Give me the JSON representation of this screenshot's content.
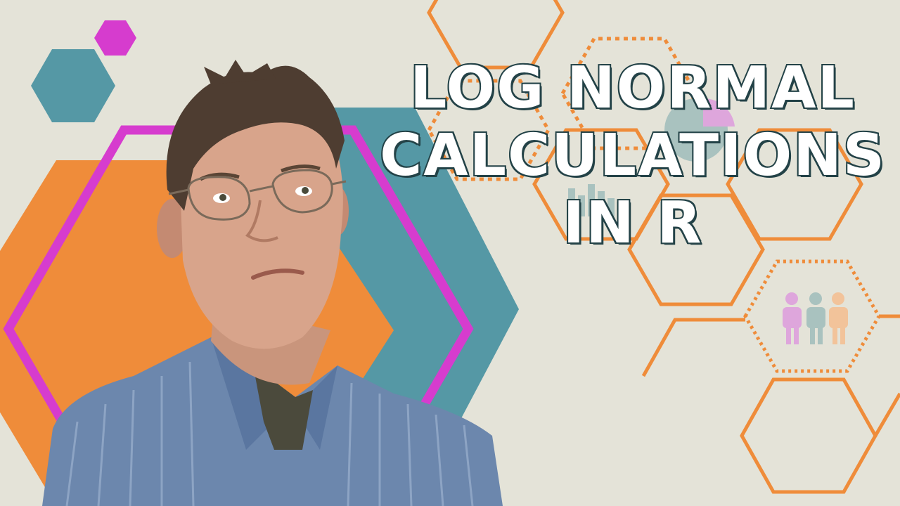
{
  "thumbnail": {
    "title_lines": [
      "LOG NORMAL",
      "CALCULATIONS",
      "IN R"
    ]
  },
  "colors": {
    "background": "#e4e3d8",
    "orange": "#ef8c3a",
    "teal": "#5598a5",
    "magenta": "#d63cce",
    "title_fill": "#ffffff",
    "title_outline": "#234247"
  },
  "icons": [
    "bar-chart-icon",
    "pie-chart-icon",
    "people-icon",
    "person-photo"
  ]
}
